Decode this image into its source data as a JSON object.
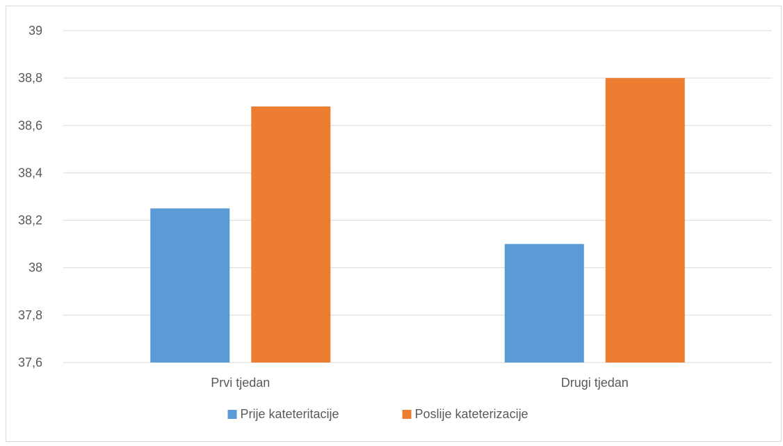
{
  "chart_data": {
    "type": "bar",
    "categories": [
      "Prvi tjedan",
      "Drugi tjedan"
    ],
    "series": [
      {
        "name": "Prije kateteritacije",
        "values": [
          38.25,
          38.1
        ],
        "color": "#5b9bd5"
      },
      {
        "name": "Poslije kateterizacije",
        "values": [
          38.68,
          38.8
        ],
        "color": "#ed7d31"
      }
    ],
    "y_ticks": [
      "37,6",
      "37,8",
      "38",
      "38,2",
      "38,4",
      "38,6",
      "38,8",
      "39"
    ],
    "ylim": [
      37.6,
      39
    ],
    "grid": true,
    "legend_position": "bottom"
  }
}
